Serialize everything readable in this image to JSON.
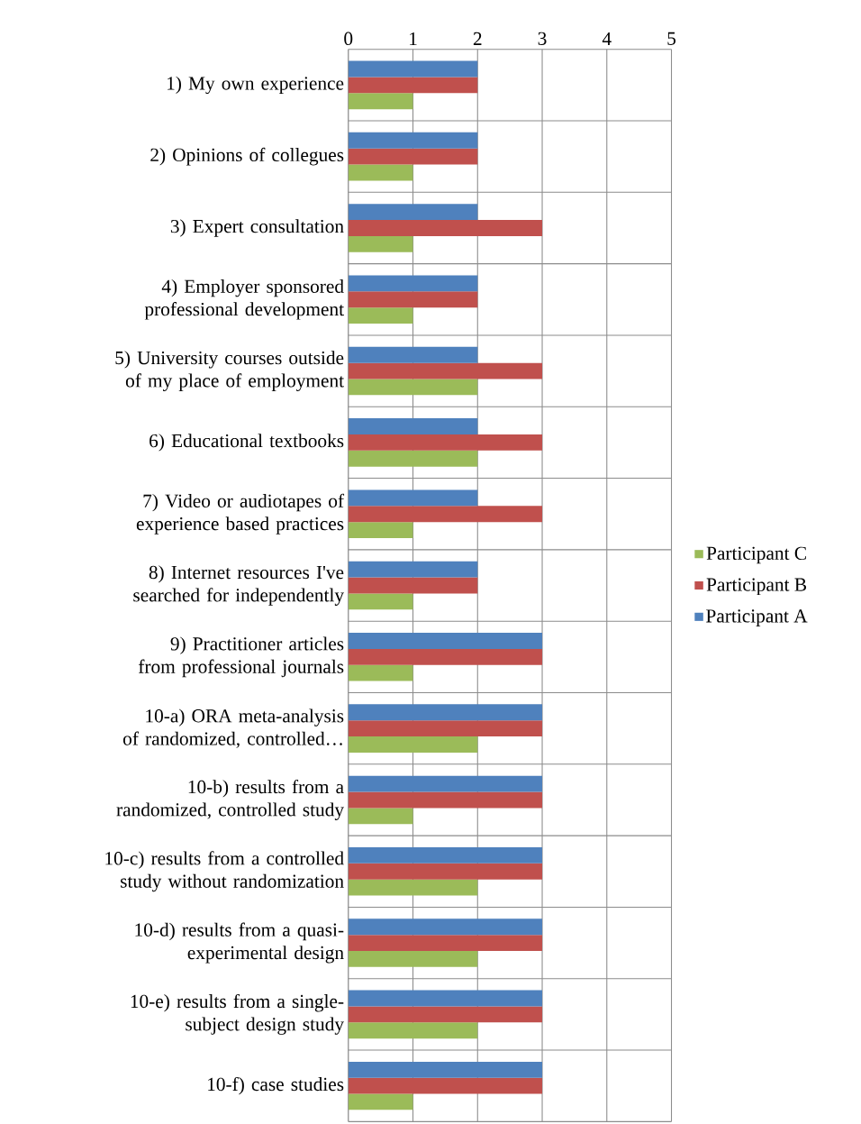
{
  "chart_data": {
    "type": "bar",
    "orientation": "horizontal",
    "categories": [
      "1) My own experience",
      "2) Opinions of collegues",
      "3) Expert consultation",
      "4) Employer sponsored professional development",
      "5) University courses outside of my place of employment",
      "6) Educational textbooks",
      "7) Video or audiotapes of experience based practices",
      "8) Internet resources I've searched for independently",
      "9) Practitioner articles from professional journals",
      "10-a) ORA meta-analysis of randomized, controlled…",
      "10-b) results from a randomized, controlled study",
      "10-c) results from a controlled study without randomization",
      "10-d) results from a quasi-experimental design",
      "10-e) results from a single-subject design study",
      "10-f) case studies"
    ],
    "series": [
      {
        "name": "Participant A",
        "color": "#4f81bd",
        "values": [
          2,
          2,
          2,
          2,
          2,
          2,
          2,
          2,
          3,
          3,
          3,
          3,
          3,
          3,
          3
        ]
      },
      {
        "name": "Participant B",
        "color": "#c0504d",
        "values": [
          2,
          2,
          3,
          2,
          3,
          3,
          3,
          2,
          3,
          3,
          3,
          3,
          3,
          3,
          3
        ]
      },
      {
        "name": "Participant C",
        "color": "#9bbb59",
        "values": [
          1,
          1,
          1,
          1,
          2,
          2,
          1,
          1,
          1,
          2,
          1,
          2,
          2,
          2,
          1
        ]
      }
    ],
    "xlim": [
      0,
      5
    ],
    "xticks": [
      0,
      1,
      2,
      3,
      4,
      5
    ],
    "grid": true,
    "legend": "right"
  }
}
